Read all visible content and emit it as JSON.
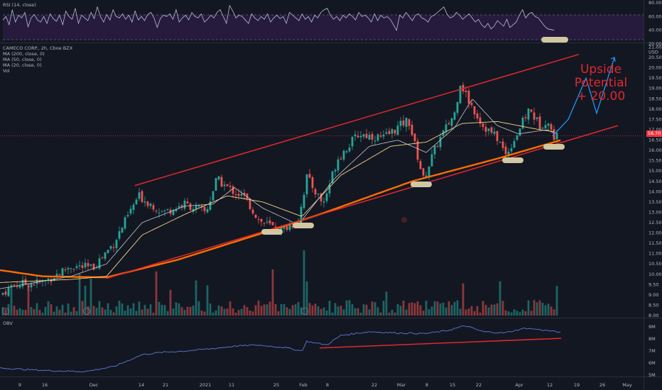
{
  "rsi_panel": {
    "title": "RSI (14, close)",
    "ticks": [
      "80.00",
      "60.00",
      "40.00",
      "20.00"
    ],
    "values": [
      55,
      60,
      48,
      70,
      52,
      62,
      58,
      66,
      45,
      58,
      63,
      55,
      52,
      60,
      50,
      64,
      57,
      53,
      62,
      48,
      68,
      60,
      56,
      72,
      50,
      62,
      58,
      54,
      66,
      57,
      74,
      60,
      52,
      63,
      55,
      70,
      60,
      58,
      64,
      56,
      62,
      52,
      68,
      55,
      60,
      54,
      63,
      66,
      58,
      44,
      57,
      62,
      60,
      64,
      56,
      70,
      52,
      58,
      62,
      55,
      66,
      60,
      58,
      64,
      52,
      56,
      62,
      58,
      66,
      70,
      60,
      50,
      76,
      68,
      58,
      62,
      60,
      55,
      50,
      64,
      58,
      54,
      60,
      56,
      64,
      52,
      58,
      62,
      57,
      60,
      50,
      66,
      62,
      58,
      54,
      64,
      56,
      60,
      52,
      62,
      58,
      66,
      70,
      72,
      62,
      56,
      60,
      54,
      62,
      58,
      64,
      60,
      55,
      66,
      60,
      62,
      58,
      52,
      64,
      54,
      62,
      58,
      60,
      56,
      48,
      40,
      62,
      58,
      66,
      60,
      54,
      62,
      64,
      58,
      56,
      52,
      60,
      62,
      66,
      70,
      74,
      64,
      58,
      60,
      66,
      62,
      56,
      60,
      64,
      58,
      52,
      56,
      48,
      44,
      50,
      42,
      46,
      54,
      50,
      46,
      56,
      44,
      48,
      52,
      62,
      70,
      58,
      64,
      66,
      60,
      58,
      52,
      46,
      42,
      41,
      40
    ]
  },
  "price_panel": {
    "legend": [
      "CAMECO CORP., 2h, Cboe BZX",
      "MA (200, close, 0)",
      "MA (50, close, 0)",
      "MA (20, close, 0)",
      "Vol"
    ],
    "price_ticks": [
      "21.00",
      "20.50",
      "20.00",
      "19.50",
      "19.00",
      "18.50",
      "18.00",
      "17.50",
      "17.00",
      "16.50",
      "16.00",
      "15.50",
      "15.00",
      "14.50",
      "14.00",
      "13.50",
      "13.00",
      "12.50",
      "12.00",
      "11.50",
      "11.00",
      "10.50",
      "10.00",
      "9.50",
      "9.00",
      "8.50",
      "8.00"
    ],
    "currency": "USD",
    "last_price": "16.70",
    "annotation": [
      "Upside Potential",
      "+ 20.00"
    ]
  },
  "obv_panel": {
    "title": "OBV",
    "ticks": [
      "9M",
      "8M",
      "7M",
      "6M",
      "5M"
    ]
  },
  "x_axis": {
    "ticks": [
      "9",
      "16",
      "Dec",
      "14",
      "21",
      "2021",
      "11",
      "25",
      "Feb",
      "8",
      "22",
      "Mar",
      "8",
      "15",
      "22",
      "Apr",
      "12",
      "19",
      "26",
      "May"
    ]
  },
  "colors": {
    "up": "#26a69a",
    "down": "#ef5350",
    "ma200": "#ff6d00",
    "ma50": "#f0d58a",
    "ma20": "#c8c8c8",
    "trend": "#e0282e",
    "projection": "#2196f3",
    "obv": "#5b7bd5",
    "rsi": "#b9bfcf",
    "highlight": "#d1c7a3"
  },
  "chart_data": [
    {
      "type": "candlestick",
      "title": "CAMECO CORP., 2h, Cboe BZX",
      "ylabel": "USD",
      "ylim": [
        8.0,
        21.0
      ],
      "x_categories": [
        "9",
        "16",
        "Dec",
        "14",
        "21",
        "2021",
        "11",
        "25",
        "Feb",
        "8",
        "22",
        "Mar",
        "8",
        "15",
        "22",
        "Apr",
        "12",
        "19",
        "26",
        "May"
      ],
      "close_anchors": [
        [
          0,
          9.0
        ],
        [
          20,
          9.5
        ],
        [
          60,
          9.6
        ],
        [
          100,
          10.4
        ],
        [
          130,
          10.3
        ],
        [
          160,
          11.5
        ],
        [
          195,
          13.8
        ],
        [
          230,
          13.0
        ],
        [
          260,
          13.4
        ],
        [
          290,
          13.0
        ],
        [
          305,
          14.6
        ],
        [
          320,
          14.2
        ],
        [
          345,
          13.7
        ],
        [
          365,
          12.6
        ],
        [
          395,
          12.1
        ],
        [
          420,
          12.6
        ],
        [
          432,
          14.7
        ],
        [
          455,
          13.4
        ],
        [
          475,
          15.6
        ],
        [
          505,
          16.8
        ],
        [
          540,
          16.6
        ],
        [
          575,
          17.5
        ],
        [
          596,
          14.6
        ],
        [
          615,
          16.3
        ],
        [
          640,
          17.8
        ],
        [
          648,
          19.3
        ],
        [
          660,
          18.4
        ],
        [
          680,
          17.2
        ],
        [
          700,
          16.6
        ],
        [
          712,
          15.8
        ],
        [
          725,
          16.6
        ],
        [
          745,
          18.0
        ],
        [
          760,
          17.2
        ],
        [
          770,
          17.5
        ],
        [
          778,
          16.7
        ]
      ],
      "series": [
        {
          "name": "MA (200, close, 0)",
          "points": [
            [
              0,
              10.2
            ],
            [
              60,
              9.9
            ],
            [
              150,
              9.85
            ],
            [
              250,
              10.7
            ],
            [
              370,
              12.0
            ],
            [
              450,
              12.9
            ],
            [
              580,
              14.5
            ],
            [
              700,
              15.6
            ],
            [
              790,
              16.5
            ]
          ]
        },
        {
          "name": "MA (50, close, 0)",
          "points": [
            [
              0,
              9.6
            ],
            [
              100,
              9.75
            ],
            [
              150,
              9.9
            ],
            [
              200,
              11.9
            ],
            [
              260,
              12.9
            ],
            [
              320,
              13.8
            ],
            [
              370,
              13.5
            ],
            [
              425,
              12.8
            ],
            [
              480,
              14.8
            ],
            [
              550,
              16.2
            ],
            [
              600,
              16.4
            ],
            [
              650,
              17.3
            ],
            [
              700,
              17.4
            ],
            [
              760,
              17.0
            ],
            [
              782,
              16.9
            ]
          ]
        },
        {
          "name": "MA (20, close, 0)",
          "points": [
            [
              0,
              9.3
            ],
            [
              100,
              9.9
            ],
            [
              150,
              10.5
            ],
            [
              200,
              12.5
            ],
            [
              260,
              13.3
            ],
            [
              300,
              13.4
            ],
            [
              330,
              14.2
            ],
            [
              370,
              13.2
            ],
            [
              420,
              12.4
            ],
            [
              470,
              14.6
            ],
            [
              520,
              16.2
            ],
            [
              560,
              16.5
            ],
            [
              600,
              15.9
            ],
            [
              640,
              17.1
            ],
            [
              665,
              18.5
            ],
            [
              700,
              17.2
            ],
            [
              730,
              16.8
            ],
            [
              770,
              17.0
            ],
            [
              782,
              16.8
            ]
          ]
        }
      ],
      "trendlines": [
        {
          "name": "upper channel",
          "from": [
            190,
            14.3
          ],
          "to": [
            815,
            20.65
          ]
        },
        {
          "name": "lower channel",
          "from": [
            150,
            9.8
          ],
          "to": [
            870,
            17.2
          ]
        }
      ],
      "projection": [
        [
          778,
          16.7
        ],
        [
          800,
          17.5
        ],
        [
          825,
          19.5
        ],
        [
          840,
          17.8
        ],
        [
          865,
          20.5
        ]
      ],
      "annotation": "Upside Potential + 20.00"
    },
    {
      "type": "line",
      "title": "RSI (14, close)",
      "ylim": [
        20,
        80
      ]
    },
    {
      "type": "line",
      "title": "OBV",
      "ylim": [
        5,
        9
      ],
      "values_M": [
        [
          0,
          5.6
        ],
        [
          40,
          5.45
        ],
        [
          80,
          5.35
        ],
        [
          120,
          5.3
        ],
        [
          160,
          5.7
        ],
        [
          200,
          6.7
        ],
        [
          230,
          6.9
        ],
        [
          260,
          7.0
        ],
        [
          300,
          7.2
        ],
        [
          330,
          7.4
        ],
        [
          360,
          7.5
        ],
        [
          400,
          7.3
        ],
        [
          425,
          7.0
        ],
        [
          432,
          7.8
        ],
        [
          460,
          7.5
        ],
        [
          480,
          8.3
        ],
        [
          520,
          8.6
        ],
        [
          560,
          8.5
        ],
        [
          600,
          8.45
        ],
        [
          630,
          8.7
        ],
        [
          655,
          9.1
        ],
        [
          680,
          8.6
        ],
        [
          710,
          8.5
        ],
        [
          740,
          8.9
        ],
        [
          770,
          8.7
        ],
        [
          790,
          8.55
        ]
      ],
      "trendline": {
        "from": [
          450,
          7.25
        ],
        "to": [
          790,
          8.05
        ]
      }
    }
  ]
}
